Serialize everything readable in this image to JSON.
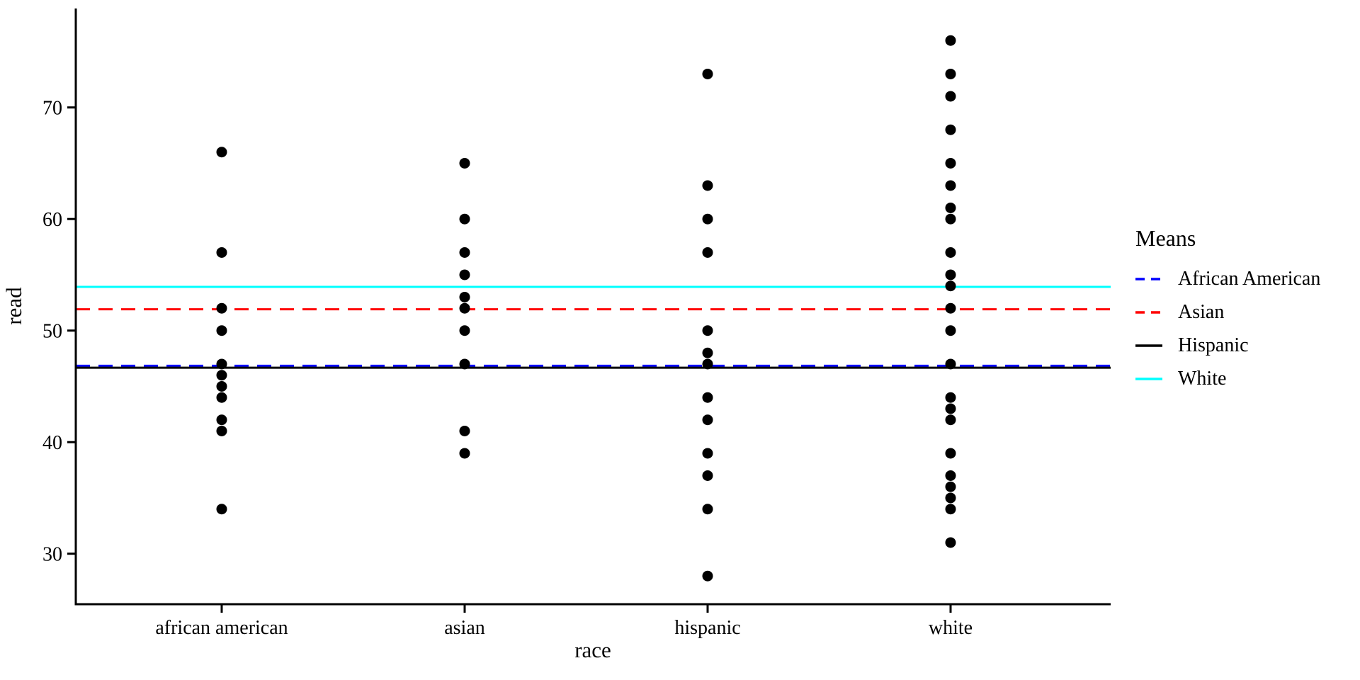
{
  "figure": {
    "background": "#ffffff",
    "text_color": "#000000"
  },
  "legend": {
    "title": "Means",
    "entries": [
      {
        "label": "African American",
        "color": "#0000FF",
        "dashed": true
      },
      {
        "label": "Asian",
        "color": "#FF0000",
        "dashed": true
      },
      {
        "label": "Hispanic",
        "color": "#000000",
        "dashed": false
      },
      {
        "label": "White",
        "color": "#00FFFF",
        "dashed": false
      }
    ]
  },
  "chart_data": {
    "type": "scatter",
    "title": "",
    "xlabel": "race",
    "ylabel": "read",
    "categories": [
      "african american",
      "asian",
      "hispanic",
      "white"
    ],
    "series": [
      {
        "name": "african american",
        "values": [
          66,
          57,
          52,
          50,
          47,
          46,
          45,
          44,
          42,
          41,
          34
        ]
      },
      {
        "name": "asian",
        "values": [
          65,
          60,
          57,
          55,
          53,
          52,
          50,
          47,
          41,
          39
        ]
      },
      {
        "name": "hispanic",
        "values": [
          73,
          63,
          60,
          57,
          50,
          48,
          47,
          44,
          42,
          39,
          37,
          34,
          28
        ]
      },
      {
        "name": "white",
        "values": [
          76,
          73,
          71,
          68,
          65,
          63,
          61,
          60,
          57,
          55,
          54,
          52,
          50,
          47,
          44,
          43,
          42,
          39,
          37,
          36,
          35,
          34,
          31
        ]
      }
    ],
    "y_ticks": [
      30,
      40,
      50,
      60,
      70
    ],
    "ylim": [
      25.5,
      79
    ],
    "grid": false,
    "legend_position": "right",
    "point_color": "#000000",
    "mean_lines": [
      {
        "label": "African American",
        "value": 46.85,
        "color": "#0000FF",
        "style": "dashed"
      },
      {
        "label": "Asian",
        "value": 51.91,
        "color": "#FF0000",
        "style": "dashed"
      },
      {
        "label": "Hispanic",
        "value": 46.67,
        "color": "#000000",
        "style": "solid"
      },
      {
        "label": "White",
        "value": 53.92,
        "color": "#00FFFF",
        "style": "solid"
      }
    ]
  }
}
